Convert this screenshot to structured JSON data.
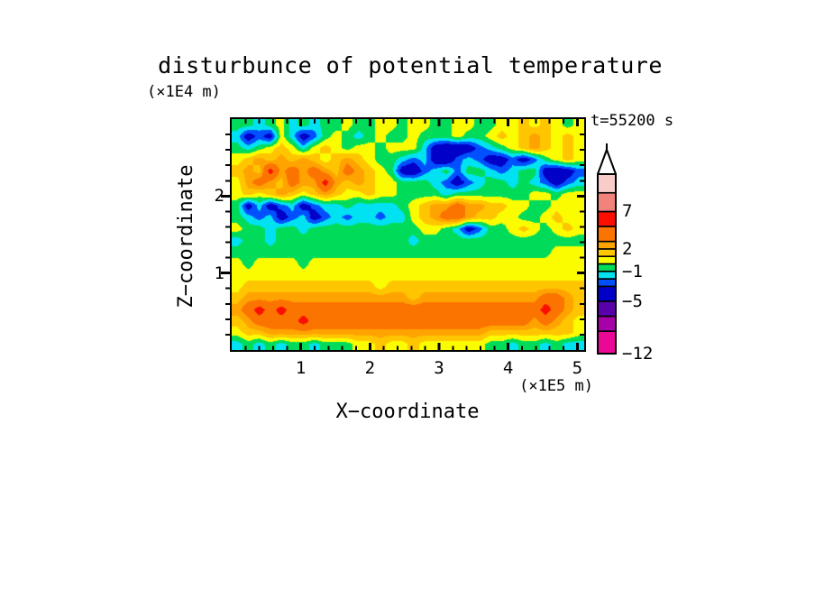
{
  "title": "disturbunce of potential temperature",
  "time_label": "t=55200 s",
  "axes": {
    "x": {
      "label": "X−coordinate",
      "unit": "(×1E5 m)",
      "tick_labels": [
        "1",
        "2",
        "3",
        "4",
        "5"
      ],
      "minor_step": 0.2
    },
    "z": {
      "label": "Z−coordinate",
      "unit": "(×1E4 m)",
      "tick_labels": [
        "1",
        "2"
      ],
      "minor_step": 0.2
    }
  },
  "colorbar": {
    "labels": [
      "7",
      "2",
      "−1",
      "−5",
      "−12"
    ],
    "label_values": [
      7,
      2,
      -1,
      -5,
      -12
    ]
  },
  "chart_data": {
    "type": "heatmap",
    "title": "disturbunce of potential temperature",
    "xlabel": "X−coordinate",
    "ylabel": "Z−coordinate",
    "x_unit": "(×1E5 m)",
    "z_unit": "(×1E4 m)",
    "time": "t=55200 s",
    "x_range": [
      0,
      5.1
    ],
    "z_range": [
      0,
      3
    ],
    "x_ticks": [
      1,
      2,
      3,
      4,
      5
    ],
    "z_ticks": [
      1,
      2
    ],
    "minor_step": 0.2,
    "levels": [
      -12,
      -9,
      -7,
      -5,
      -3,
      -2,
      -1,
      0,
      1,
      2,
      3,
      5,
      7,
      9.5,
      12
    ],
    "palette": [
      "#EC0896",
      "#A800A8",
      "#5A00AA",
      "#0000C8",
      "#0050FF",
      "#00E2F2",
      "#00DC5A",
      "#FCFC00",
      "#FFC600",
      "#FFA300",
      "#FC7400",
      "#FA0F00",
      "#F2837B",
      "#F8CCC8"
    ],
    "over_color": "#F8D8D4",
    "grid_note": "values on 20 rows (top Z=3 to bottom Z=0) x 32 cols (X=0 to 5.1)",
    "grid": [
      [
        -0.5,
        -0.5,
        -1.5,
        -0.5,
        0.5,
        -1.5,
        -0.5,
        -1.5,
        -0.5,
        -0.5,
        0.5,
        -0.5,
        -0.5,
        0.5,
        0.5,
        -0.5,
        0.5,
        0.5,
        -0.5,
        -0.5,
        0.5,
        0.5,
        -0.5,
        -0.5,
        0.5,
        0.5,
        1.5,
        0.5,
        1.5,
        0.5,
        -0.5,
        0.5
      ],
      [
        -1.5,
        -4,
        -2.5,
        -4,
        0.5,
        -1.5,
        -4,
        -2.5,
        -0.5,
        0.5,
        -0.5,
        -1.5,
        -0.5,
        0.5,
        -0.5,
        -0.5,
        0.5,
        -0.5,
        -0.5,
        -0.5,
        0.5,
        -0.5,
        -0.5,
        0.5,
        1.5,
        0.5,
        1.5,
        2.5,
        1.5,
        0.5,
        1.5,
        0.5
      ],
      [
        -0.5,
        -1.5,
        -0.5,
        0.5,
        1.5,
        0.5,
        -1.5,
        0.5,
        1.5,
        0.5,
        -0.5,
        0.5,
        0.5,
        -0.5,
        0.5,
        0.5,
        0.5,
        -1.5,
        -4,
        -4.5,
        -4.5,
        -4,
        -2.5,
        -1.5,
        -0.5,
        0.5,
        1.5,
        2.5,
        1.5,
        0.5,
        1.5,
        0.5
      ],
      [
        0.5,
        1.5,
        2.5,
        1.5,
        2.5,
        1.5,
        2.5,
        1.5,
        0.5,
        1.5,
        2.5,
        1.5,
        0.5,
        -0.5,
        -0.5,
        -1.5,
        -2.5,
        -1.5,
        -4,
        -4.5,
        -2.5,
        -1.5,
        -2.5,
        -4,
        -4,
        -2.5,
        -4,
        -2.5,
        -0.5,
        0.5,
        1.5,
        0.5
      ],
      [
        1.5,
        2.5,
        1.5,
        6,
        2.5,
        4,
        2.5,
        4,
        2.5,
        1.5,
        4,
        2.5,
        1.5,
        0.5,
        -0.5,
        -4,
        -4.5,
        -2.5,
        -1.5,
        -0.5,
        -2.5,
        -0.5,
        -0.5,
        -1.5,
        -2.5,
        -1.5,
        -0.5,
        -0.5,
        -4,
        -4.5,
        -4,
        -2.5
      ],
      [
        0.5,
        2.5,
        4,
        2.5,
        1.5,
        4,
        2.5,
        2.5,
        6,
        2.5,
        1.5,
        2.5,
        1.5,
        0.5,
        0.5,
        -0.5,
        -0.5,
        -0.5,
        -1.5,
        -2.5,
        -4,
        -2.5,
        -1.5,
        -0.5,
        -0.5,
        -1.5,
        -0.5,
        -1.5,
        -2.5,
        -4,
        -2.5,
        -1.5
      ],
      [
        0.5,
        1.5,
        0.5,
        1.5,
        2.5,
        1.5,
        0.5,
        1.5,
        2.5,
        1.5,
        0.5,
        0.5,
        1.5,
        0.5,
        0.5,
        -0.5,
        -0.5,
        -0.5,
        -0.5,
        -1.5,
        -0.5,
        -0.5,
        -0.5,
        -0.5,
        -0.5,
        -0.5,
        -0.5,
        0.5,
        0.5,
        -0.5,
        0.5,
        0.5
      ],
      [
        -0.5,
        -4,
        -1.5,
        -4,
        -2.5,
        -1.5,
        -4,
        -2.5,
        -1.5,
        -1.5,
        -0.5,
        -1.5,
        -1.5,
        -1.5,
        -1.5,
        -0.5,
        0.5,
        1.5,
        2.5,
        2.5,
        4,
        2.5,
        2.5,
        1.5,
        1.5,
        0.5,
        0.5,
        -0.5,
        -0.5,
        0.5,
        0.5,
        0.5
      ],
      [
        -0.5,
        -1.5,
        -2.5,
        -1.5,
        -4,
        -2.5,
        -1.5,
        -4,
        -2.5,
        -1.5,
        -2.5,
        -1.5,
        -1.5,
        -2.5,
        -1.5,
        -1.5,
        0.5,
        1.5,
        2.5,
        4,
        4,
        2.5,
        1.5,
        1.5,
        0.5,
        0.5,
        -0.5,
        -0.5,
        0.5,
        1.5,
        0.5,
        0.5
      ],
      [
        0.5,
        -0.5,
        -0.5,
        -1.5,
        -0.5,
        -0.5,
        -1.5,
        -0.5,
        -0.5,
        -0.5,
        -0.5,
        -0.5,
        -0.5,
        -0.5,
        -0.5,
        -0.5,
        -0.5,
        0.5,
        0.5,
        -0.5,
        -1.5,
        -4,
        -2.5,
        -0.5,
        -0.5,
        0.5,
        1.5,
        0.5,
        -0.5,
        0.5,
        1.5,
        0.5
      ],
      [
        -1.5,
        -0.5,
        -0.5,
        -1.5,
        -0.5,
        -0.5,
        -0.5,
        -0.5,
        -0.5,
        -0.5,
        -0.5,
        -0.5,
        -0.5,
        -0.5,
        -0.5,
        -0.5,
        -1.5,
        -0.5,
        -0.5,
        -0.5,
        -0.5,
        -0.5,
        -0.5,
        -0.5,
        -0.5,
        -0.5,
        -0.5,
        -0.5,
        -0.5,
        -0.5,
        -0.5,
        -0.5
      ],
      [
        -0.5,
        -0.5,
        -0.5,
        -0.5,
        -0.5,
        -0.5,
        -0.5,
        -0.5,
        -0.5,
        -0.5,
        -0.5,
        -0.5,
        -0.5,
        -0.5,
        -0.5,
        -0.5,
        -0.5,
        -0.5,
        -0.5,
        -0.5,
        -0.5,
        -0.5,
        -0.5,
        -0.5,
        -0.5,
        -0.5,
        -0.5,
        -0.5,
        -0.5,
        0.5,
        0.5,
        0.5
      ],
      [
        0.5,
        -0.5,
        0.5,
        0.5,
        0.5,
        0.5,
        -0.5,
        0.5,
        0.5,
        0.5,
        0.5,
        0.5,
        0.5,
        0.5,
        0.5,
        0.5,
        0.5,
        0.5,
        0.5,
        0.5,
        0.5,
        0.5,
        0.5,
        0.5,
        0.5,
        0.5,
        0.5,
        0.5,
        0.5,
        0.5,
        0.5,
        0.5
      ],
      [
        0.5,
        0.5,
        0.5,
        0.5,
        0.5,
        0.5,
        0.5,
        0.5,
        0.5,
        0.5,
        0.5,
        0.5,
        0.5,
        0.5,
        0.5,
        0.5,
        0.5,
        0.5,
        0.5,
        0.5,
        0.5,
        0.5,
        0.5,
        0.5,
        0.5,
        0.5,
        0.5,
        0.5,
        0.5,
        0.5,
        0.5,
        0.5
      ],
      [
        0.5,
        1.5,
        1.5,
        1.5,
        1.5,
        1.5,
        1.5,
        1.5,
        1.5,
        1.5,
        1.5,
        1.5,
        1.5,
        0.5,
        1.5,
        1.5,
        1.5,
        1.5,
        1.5,
        1.5,
        1.5,
        1.5,
        1.5,
        1.5,
        1.5,
        1.5,
        1.5,
        1.5,
        1.5,
        1.5,
        1.5,
        1.5
      ],
      [
        1.5,
        2.5,
        2.5,
        2.5,
        2.5,
        2.5,
        2.5,
        2.5,
        2.5,
        2.5,
        2.5,
        2.5,
        2.5,
        2.5,
        2.5,
        2.5,
        1.5,
        2.5,
        2.5,
        2.5,
        2.5,
        2.5,
        2.5,
        2.5,
        2.5,
        2.5,
        2.5,
        2.5,
        4,
        4,
        2.5,
        1.5
      ],
      [
        2.5,
        4,
        6,
        4,
        6,
        4,
        4,
        4,
        4,
        4,
        4,
        4,
        4,
        4,
        4,
        4,
        4,
        4,
        4,
        4,
        4,
        4,
        4,
        4,
        4,
        4,
        4,
        4,
        6,
        4,
        2.5,
        1.5
      ],
      [
        1.5,
        2.5,
        4,
        4,
        4,
        4,
        6,
        4,
        4,
        4,
        4,
        4,
        4,
        4,
        4,
        4,
        4,
        4,
        4,
        4,
        4,
        4,
        4,
        4,
        4,
        4,
        4,
        2.5,
        4,
        2.5,
        1.5,
        0.5
      ],
      [
        0.5,
        1.5,
        1.5,
        2.5,
        2.5,
        2.5,
        2.5,
        2.5,
        2.5,
        2.5,
        2.5,
        2.5,
        2.5,
        2.5,
        2.5,
        2.5,
        2.5,
        2.5,
        2.5,
        2.5,
        2.5,
        2.5,
        2.5,
        1.5,
        1.5,
        1.5,
        1.5,
        1.5,
        1.5,
        1.5,
        1.5,
        0.5
      ],
      [
        -1.5,
        -0.5,
        -1.5,
        -0.5,
        -1.5,
        -0.5,
        -0.5,
        -1.5,
        -0.5,
        -0.5,
        -0.5,
        0.5,
        0.5,
        1.5,
        0.5,
        0.5,
        1.5,
        0.5,
        0.5,
        0.5,
        0.5,
        0.5,
        0.5,
        -0.5,
        -0.5,
        -1.5,
        -0.5,
        -0.5,
        -1.5,
        -0.5,
        -1.5,
        -1.5
      ]
    ]
  }
}
